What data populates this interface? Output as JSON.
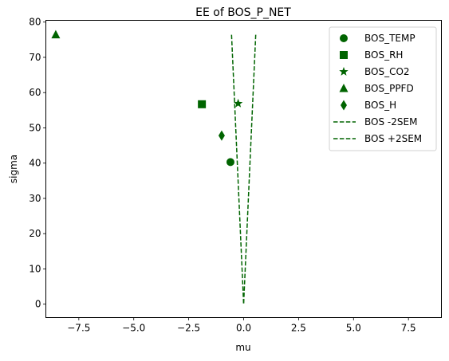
{
  "chart_data": {
    "type": "scatter",
    "title": "EE of BOS_P_NET",
    "xlabel": "mu",
    "ylabel": "sigma",
    "xlim": [
      -9.0,
      9.0
    ],
    "ylim": [
      -3.8,
      80.5
    ],
    "x_ticks": [
      -7.5,
      -5.0,
      -2.5,
      0.0,
      2.5,
      5.0,
      7.5
    ],
    "x_tick_labels": [
      "−7.5",
      "−5.0",
      "−2.5",
      "0.0",
      "2.5",
      "5.0",
      "7.5"
    ],
    "y_ticks": [
      0,
      10,
      20,
      30,
      40,
      50,
      60,
      70,
      80
    ],
    "y_tick_labels": [
      "0",
      "10",
      "20",
      "30",
      "40",
      "50",
      "60",
      "70",
      "80"
    ],
    "grid": false,
    "legend_position": "top-right",
    "color": "#006400",
    "points": [
      {
        "name": "BOS_TEMP",
        "marker": "circle",
        "x": -0.6,
        "y": 40.3
      },
      {
        "name": "BOS_RH",
        "marker": "square",
        "x": -1.9,
        "y": 56.7
      },
      {
        "name": "BOS_CO2",
        "marker": "star",
        "x": -0.25,
        "y": 56.9
      },
      {
        "name": "BOS_PPFD",
        "marker": "triangle",
        "x": -8.55,
        "y": 76.4
      },
      {
        "name": "BOS_H",
        "marker": "diamond",
        "x": -1.0,
        "y": 47.8
      }
    ],
    "lines": [
      {
        "name": "BOS -2SEM",
        "style": "dashed",
        "x": [
          -0.55,
          0.0
        ],
        "y": [
          76.4,
          0.0
        ]
      },
      {
        "name": "BOS +2SEM",
        "style": "dashed",
        "x": [
          0.55,
          0.0
        ],
        "y": [
          76.4,
          0.0
        ]
      }
    ]
  }
}
